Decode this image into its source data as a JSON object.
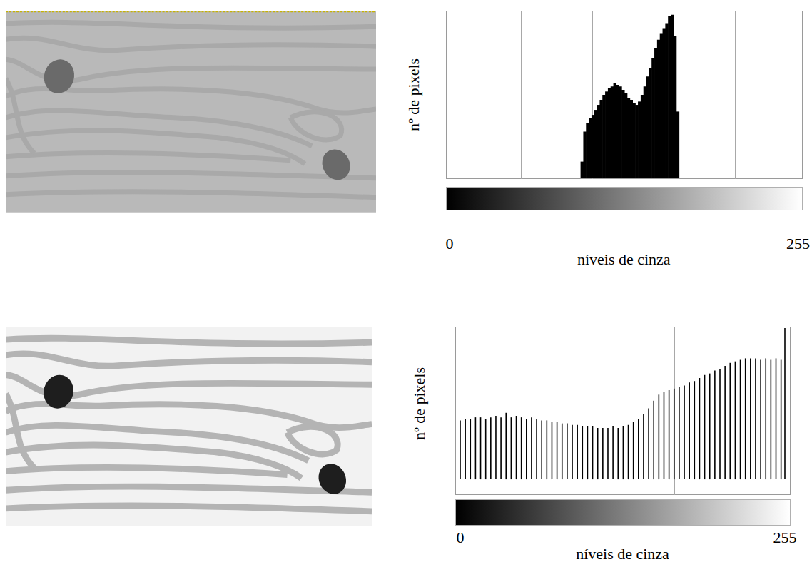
{
  "chart_data": [
    {
      "type": "histogram",
      "x_label": "níveis de cinza",
      "y_label": "nº de pixels",
      "bins": [
        96,
        98,
        100,
        102,
        104,
        106,
        108,
        110,
        112,
        114,
        116,
        118,
        120,
        122,
        124,
        126,
        128,
        130,
        132,
        134,
        136,
        138,
        140,
        142,
        144,
        146,
        148,
        150,
        152,
        154,
        156,
        158,
        160,
        162,
        164,
        166,
        168
      ],
      "values": [
        10,
        28,
        33,
        36,
        38,
        41,
        44,
        47,
        50,
        52,
        54,
        55,
        57,
        56,
        55,
        53,
        51,
        48,
        47,
        45,
        44,
        46,
        50,
        55,
        61,
        66,
        72,
        78,
        83,
        87,
        90,
        93,
        97,
        98,
        85,
        40
      ],
      "color": "#000000",
      "xlim": [
        0,
        255
      ],
      "xticks": [
        0,
        255
      ],
      "ylim": [
        0,
        100
      ],
      "tick_labels": "x",
      "grid": true
    },
    {
      "type": "bar",
      "x_label": "níveis de cinza",
      "y_label": "nº de pixels",
      "x": [
        0,
        4,
        8,
        12,
        16,
        20,
        24,
        28,
        32,
        36,
        40,
        44,
        48,
        52,
        56,
        60,
        64,
        68,
        72,
        76,
        80,
        84,
        88,
        92,
        96,
        100,
        104,
        108,
        112,
        116,
        120,
        124,
        128,
        132,
        136,
        140,
        144,
        148,
        152,
        156,
        160,
        164,
        168,
        172,
        176,
        180,
        184,
        188,
        192,
        196,
        200,
        204,
        208,
        212,
        216,
        220,
        224,
        228,
        232,
        236,
        240,
        244,
        248,
        252,
        255
      ],
      "values": [
        39,
        40,
        40,
        41,
        41,
        40,
        41,
        42,
        41,
        44,
        41,
        42,
        41,
        40,
        41,
        40,
        39,
        39,
        38,
        38,
        37,
        37,
        36,
        36,
        35,
        35,
        35,
        34,
        34,
        34,
        35,
        34,
        35,
        36,
        38,
        40,
        43,
        47,
        52,
        56,
        58,
        59,
        60,
        61,
        62,
        64,
        65,
        67,
        69,
        70,
        72,
        73,
        75,
        77,
        78,
        79,
        80,
        80,
        80,
        79,
        80,
        79,
        80,
        79,
        100
      ],
      "color": "#000000",
      "xlim": [
        0,
        255
      ],
      "xticks": [
        0,
        255
      ],
      "ylim": [
        0,
        100
      ],
      "tick_labels": "x",
      "grid": true
    }
  ]
}
